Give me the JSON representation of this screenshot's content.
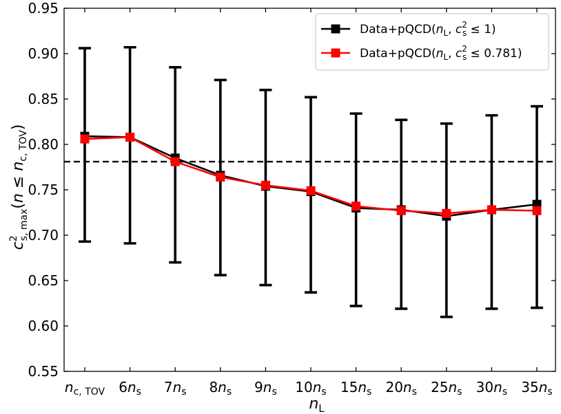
{
  "chart_data": {
    "type": "line",
    "title": "",
    "categories": [
      "nc,TOV",
      "6ns",
      "7ns",
      "8ns",
      "9ns",
      "10ns",
      "15ns",
      "20ns",
      "25ns",
      "30ns",
      "35ns"
    ],
    "category_labels": [
      {
        "main": "n",
        "sub": "c, TOV"
      },
      {
        "main": "6n",
        "sub": "s"
      },
      {
        "main": "7n",
        "sub": "s"
      },
      {
        "main": "8n",
        "sub": "s"
      },
      {
        "main": "9n",
        "sub": "s"
      },
      {
        "main": "10n",
        "sub": "s"
      },
      {
        "main": "15n",
        "sub": "s"
      },
      {
        "main": "20n",
        "sub": "s"
      },
      {
        "main": "25n",
        "sub": "s"
      },
      {
        "main": "30n",
        "sub": "s"
      },
      {
        "main": "35n",
        "sub": "s"
      }
    ],
    "xlabel": {
      "main": "n",
      "sub": "L"
    },
    "ylabel": {
      "main": "c",
      "sup": "2",
      "sub": "s, max",
      "rest": "(n ≤ n",
      "sub2": "c, TOV",
      "end": ")"
    },
    "ylim": [
      0.55,
      0.95
    ],
    "yticks": [
      "0.55",
      "0.60",
      "0.65",
      "0.70",
      "0.75",
      "0.80",
      "0.85",
      "0.90",
      "0.95"
    ],
    "reference_line": {
      "y": 0.781,
      "style": "dashed",
      "color": "#000000"
    },
    "legend_position": "top-right",
    "series": [
      {
        "name": "Data+pQCD(nL, cs² ≤ 1)",
        "legend_parts": {
          "pre": "Data+pQCD(",
          "n": "n",
          "nsub": "L",
          "mid": ", c",
          "csup": "2",
          "csub": "s",
          "rel": " ≤ 1)"
        },
        "color": "#000000",
        "marker": "square",
        "values": [
          0.809,
          0.808,
          0.785,
          0.766,
          0.754,
          0.748,
          0.73,
          0.728,
          0.721,
          0.728,
          0.734
        ],
        "error_low": [
          0.693,
          0.691,
          0.67,
          0.656,
          0.645,
          0.637,
          0.622,
          0.619,
          0.61,
          0.619,
          0.62
        ],
        "error_high": [
          0.906,
          0.907,
          0.885,
          0.871,
          0.86,
          0.852,
          0.834,
          0.827,
          0.823,
          0.832,
          0.842
        ]
      },
      {
        "name": "Data+pQCD(nL, cs² ≤ 0.781)",
        "legend_parts": {
          "pre": "Data+pQCD(",
          "n": "n",
          "nsub": "L",
          "mid": ", c",
          "csup": "2",
          "csub": "s",
          "rel": " ≤ 0.781)"
        },
        "color": "#ff0000",
        "marker": "square",
        "values": [
          0.806,
          0.808,
          0.781,
          0.764,
          0.755,
          0.749,
          0.732,
          0.727,
          0.724,
          0.728,
          0.727
        ]
      }
    ]
  }
}
